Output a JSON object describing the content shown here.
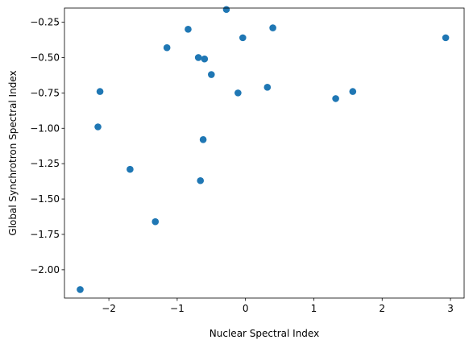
{
  "chart_data": {
    "type": "scatter",
    "xlabel": "Nuclear Spectral Index",
    "ylabel": "Global Synchrotron Spectral Index",
    "xlim": [
      -2.65,
      3.2
    ],
    "ylim": [
      -2.2,
      -0.15
    ],
    "x_ticks": [
      -2,
      -1,
      0,
      1,
      2,
      3
    ],
    "x_tick_labels": [
      "−2",
      "−1",
      "0",
      "1",
      "2",
      "3"
    ],
    "y_ticks": [
      -2.0,
      -1.75,
      -1.5,
      -1.25,
      -1.0,
      -0.75,
      -0.5,
      -0.25
    ],
    "y_tick_labels": [
      "−2.00",
      "−1.75",
      "−1.50",
      "−1.25",
      "−1.00",
      "−0.75",
      "−0.50",
      "−0.25"
    ],
    "grid": false,
    "marker_color": "#1f77b4",
    "points": [
      {
        "x": -2.42,
        "y": -2.14
      },
      {
        "x": -2.16,
        "y": -0.99
      },
      {
        "x": -2.13,
        "y": -0.74
      },
      {
        "x": -1.69,
        "y": -1.29
      },
      {
        "x": -1.32,
        "y": -1.66
      },
      {
        "x": -1.15,
        "y": -0.43
      },
      {
        "x": -0.84,
        "y": -0.3
      },
      {
        "x": -0.69,
        "y": -0.5
      },
      {
        "x": -0.66,
        "y": -1.37
      },
      {
        "x": -0.62,
        "y": -1.08
      },
      {
        "x": -0.6,
        "y": -0.51
      },
      {
        "x": -0.5,
        "y": -0.62
      },
      {
        "x": -0.28,
        "y": -0.16
      },
      {
        "x": -0.11,
        "y": -0.75
      },
      {
        "x": -0.04,
        "y": -0.36
      },
      {
        "x": 0.32,
        "y": -0.71
      },
      {
        "x": 0.4,
        "y": -0.29
      },
      {
        "x": 1.32,
        "y": -0.79
      },
      {
        "x": 1.57,
        "y": -0.74
      },
      {
        "x": 2.93,
        "y": -0.36
      }
    ]
  }
}
